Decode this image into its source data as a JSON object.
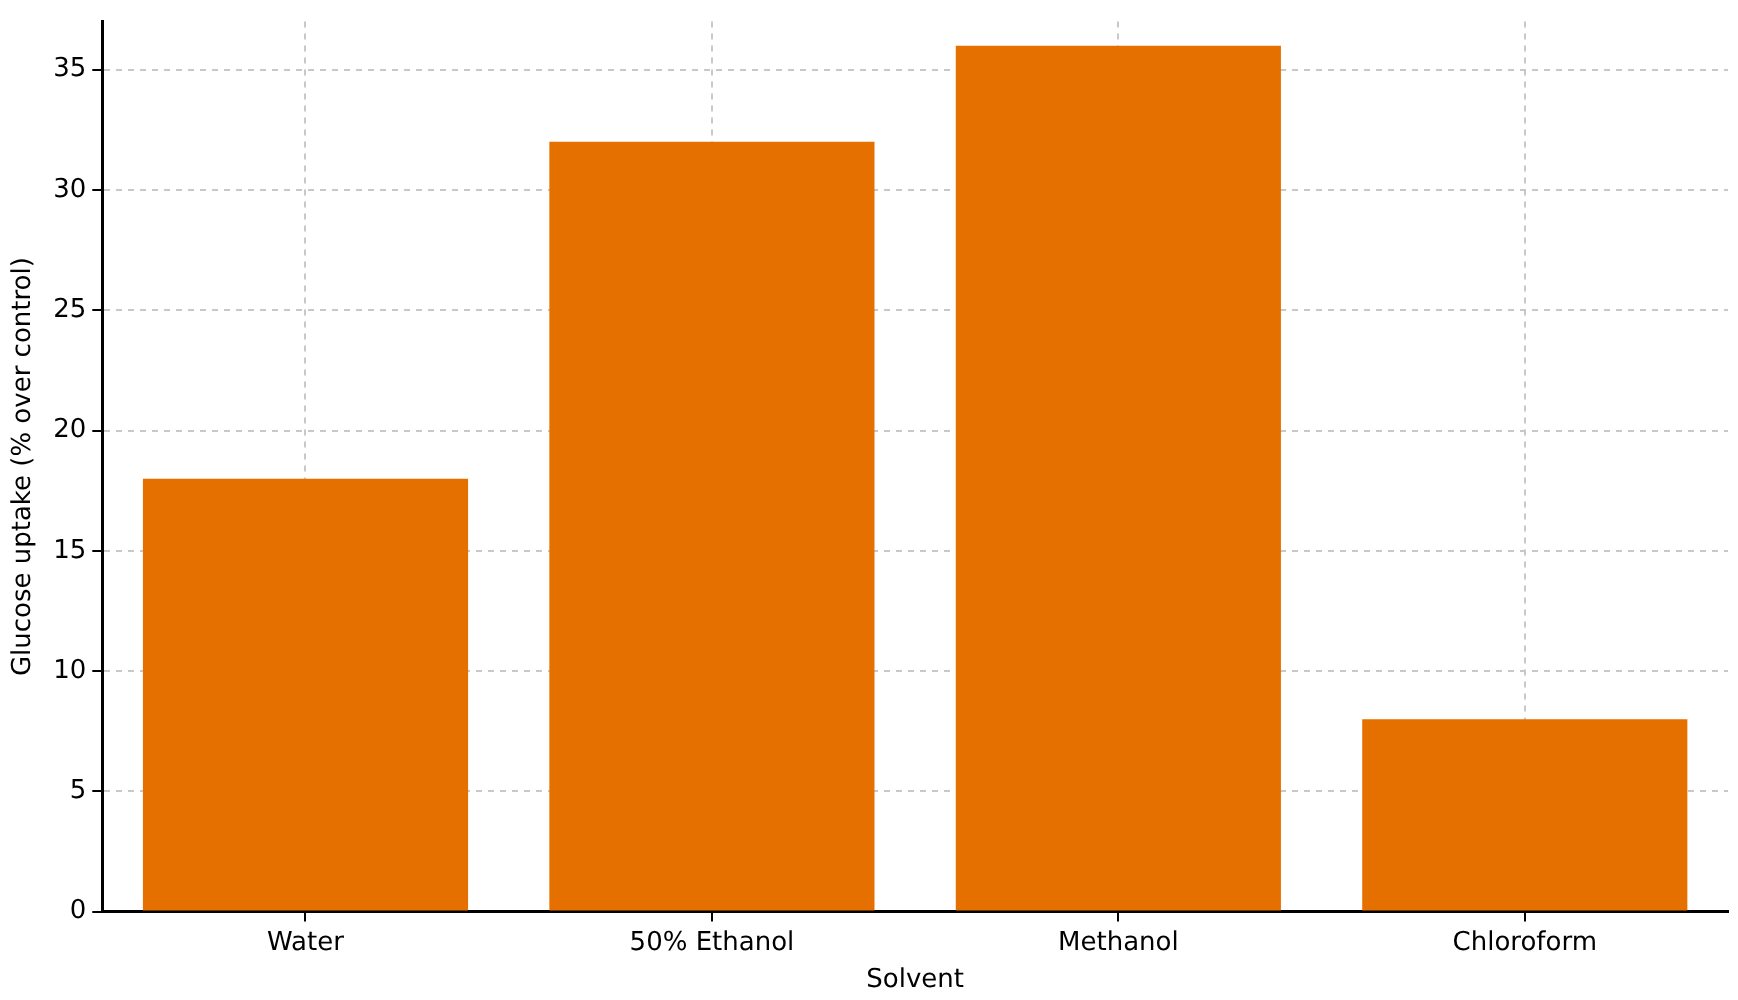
{
  "chart_data": {
    "type": "bar",
    "xlabel": "Solvent",
    "ylabel": "Glucose uptake (% over control)",
    "categories": [
      "Water",
      "50% Ethanol",
      "Methanol",
      "Chloroform"
    ],
    "values": [
      18,
      32,
      36,
      8
    ],
    "color": "#e57000",
    "ylim": [
      0,
      37
    ],
    "yticks": [
      0,
      5,
      10,
      15,
      20,
      25,
      30,
      35
    ],
    "grid": true
  }
}
